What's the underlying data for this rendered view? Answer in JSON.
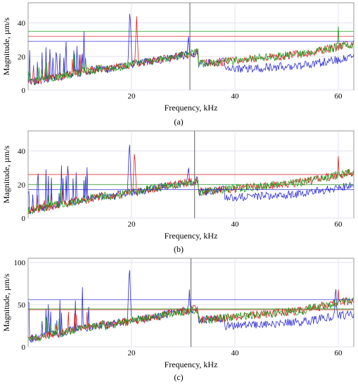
{
  "figure": {
    "panels": [
      {
        "label": "(a)",
        "panel": "a"
      },
      {
        "label": "(b)",
        "panel": "b"
      },
      {
        "label": "(c)",
        "panel": "c"
      }
    ]
  },
  "chart_data": [
    {
      "panel": "a",
      "type": "line",
      "xlabel": "Frequency, kHz",
      "ylabel": "Magnitude, µm/s",
      "xlim": [
        0,
        63
      ],
      "ylim": [
        0,
        52
      ],
      "xticks": [
        20,
        40,
        60
      ],
      "yticks": [
        0,
        20,
        40
      ],
      "grid": true,
      "marker_line_x": 31.3,
      "series_colors": [
        "#2b2bd6",
        "#e02020",
        "#1a9a1a"
      ],
      "threshold_lines": [
        {
          "color": "#e02020",
          "y": 32
        },
        {
          "color": "#1a9a1a",
          "y": 35
        },
        {
          "color": "#2b2bd6",
          "y": 29
        }
      ],
      "peaks": [
        {
          "color": "#2b2bd6",
          "x": 19.7,
          "y": 50
        },
        {
          "color": "#e02020",
          "x": 21.0,
          "y": 44
        },
        {
          "color": "#2b2bd6",
          "x": 31.0,
          "y": 35
        },
        {
          "color": "#1a9a1a",
          "x": 60.0,
          "y": 38
        }
      ]
    },
    {
      "panel": "b",
      "type": "line",
      "xlabel": "Frequency, kHz",
      "ylabel": "Magnitude, µm/s",
      "xlim": [
        0,
        63
      ],
      "ylim": [
        0,
        52
      ],
      "xticks": [
        20,
        40,
        60
      ],
      "yticks": [
        0,
        20,
        40
      ],
      "grid": true,
      "marker_line_x": 32.2,
      "series_colors": [
        "#2b2bd6",
        "#e02020",
        "#1a9a1a"
      ],
      "threshold_lines": [
        {
          "color": "#e02020",
          "y": 26
        },
        {
          "color": "#1a9a1a",
          "y": 20
        },
        {
          "color": "#2b2bd6",
          "y": 17
        }
      ],
      "peaks": [
        {
          "color": "#2b2bd6",
          "x": 19.6,
          "y": 48
        },
        {
          "color": "#e02020",
          "x": 20.6,
          "y": 42
        },
        {
          "color": "#2b2bd6",
          "x": 31.0,
          "y": 33
        },
        {
          "color": "#e02020",
          "x": 60.0,
          "y": 37
        }
      ]
    },
    {
      "panel": "c",
      "type": "line",
      "xlabel": "Frequency, kHz",
      "ylabel": "Magnitude, µm/s",
      "xlim": [
        0,
        63
      ],
      "ylim": [
        0,
        105
      ],
      "xticks": [
        20,
        40,
        60
      ],
      "yticks": [
        0,
        50,
        100
      ],
      "grid": true,
      "marker_line_x": 31.5,
      "series_colors": [
        "#2b2bd6",
        "#e02020",
        "#1a9a1a"
      ],
      "threshold_lines": [
        {
          "color": "#2b2bd6",
          "y": 56
        },
        {
          "color": "#e02020",
          "y": 44
        },
        {
          "color": "#1a9a1a",
          "y": 45
        }
      ],
      "peaks": [
        {
          "color": "#2b2bd6",
          "x": 19.6,
          "y": 100
        },
        {
          "color": "#2b2bd6",
          "x": 31.2,
          "y": 68
        },
        {
          "color": "#2b2bd6",
          "x": 59.5,
          "y": 75
        },
        {
          "color": "#e02020",
          "x": 60.0,
          "y": 68
        }
      ]
    }
  ]
}
